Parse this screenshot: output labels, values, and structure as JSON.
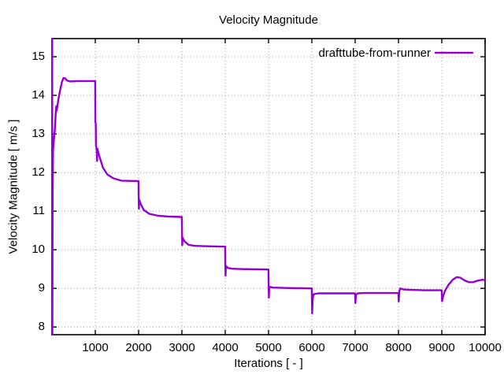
{
  "chart_data": {
    "type": "line",
    "title": "Velocity Magnitude",
    "xlabel": "Iterations [ - ]",
    "ylabel": "Velocity Magnitude [ m/s ]",
    "xlim": [
      0,
      10000
    ],
    "ylim": [
      7.8,
      15.47
    ],
    "xticks": [
      1000,
      2000,
      3000,
      4000,
      5000,
      6000,
      7000,
      8000,
      9000,
      10000
    ],
    "yticks": [
      8,
      9,
      10,
      11,
      12,
      13,
      14,
      15
    ],
    "grid": "dotted major ticks, both axes",
    "legend_position": "top-right-inside",
    "series": [
      {
        "name": "drafttube-from-runner",
        "color": "#9400D3",
        "points": [
          [
            2,
            7.8
          ],
          [
            6,
            15.47
          ],
          [
            10,
            7.8
          ],
          [
            14,
            11.5
          ],
          [
            25,
            12.6
          ],
          [
            45,
            12.85
          ],
          [
            65,
            13.1
          ],
          [
            80,
            13.4
          ],
          [
            92,
            13.65
          ],
          [
            100,
            13.72
          ],
          [
            107,
            13.6
          ],
          [
            118,
            13.66
          ],
          [
            145,
            13.88
          ],
          [
            185,
            14.12
          ],
          [
            230,
            14.35
          ],
          [
            265,
            14.45
          ],
          [
            305,
            14.44
          ],
          [
            350,
            14.38
          ],
          [
            420,
            14.36
          ],
          [
            600,
            14.37
          ],
          [
            800,
            14.37
          ],
          [
            998,
            14.37
          ],
          [
            1002,
            13.3
          ],
          [
            1010,
            13.28
          ],
          [
            1016,
            12.7
          ],
          [
            1030,
            12.62
          ],
          [
            1042,
            12.3
          ],
          [
            1048,
            12.62
          ],
          [
            1100,
            12.4
          ],
          [
            1180,
            12.12
          ],
          [
            1280,
            11.95
          ],
          [
            1420,
            11.85
          ],
          [
            1600,
            11.79
          ],
          [
            1998,
            11.78
          ],
          [
            2002,
            11.35
          ],
          [
            2007,
            11.06
          ],
          [
            2014,
            11.3
          ],
          [
            2050,
            11.18
          ],
          [
            2120,
            11.03
          ],
          [
            2250,
            10.93
          ],
          [
            2450,
            10.88
          ],
          [
            2700,
            10.86
          ],
          [
            2998,
            10.85
          ],
          [
            3002,
            10.45
          ],
          [
            3007,
            10.12
          ],
          [
            3014,
            10.32
          ],
          [
            3060,
            10.22
          ],
          [
            3150,
            10.13
          ],
          [
            3300,
            10.1
          ],
          [
            3600,
            10.09
          ],
          [
            3998,
            10.08
          ],
          [
            4002,
            9.65
          ],
          [
            4007,
            9.33
          ],
          [
            4016,
            9.58
          ],
          [
            4060,
            9.53
          ],
          [
            4150,
            9.51
          ],
          [
            4400,
            9.5
          ],
          [
            4998,
            9.49
          ],
          [
            5002,
            9.15
          ],
          [
            5007,
            8.76
          ],
          [
            5016,
            9.04
          ],
          [
            5100,
            9.02
          ],
          [
            5400,
            9.01
          ],
          [
            5998,
            9.0
          ],
          [
            6002,
            8.72
          ],
          [
            6007,
            8.35
          ],
          [
            6020,
            8.75
          ],
          [
            6045,
            8.85
          ],
          [
            6150,
            8.87
          ],
          [
            6500,
            8.87
          ],
          [
            6998,
            8.87
          ],
          [
            7002,
            8.74
          ],
          [
            7006,
            8.62
          ],
          [
            7018,
            8.83
          ],
          [
            7060,
            8.87
          ],
          [
            7200,
            8.88
          ],
          [
            7600,
            8.88
          ],
          [
            7998,
            8.88
          ],
          [
            8002,
            8.77
          ],
          [
            8006,
            8.66
          ],
          [
            8020,
            8.93
          ],
          [
            8045,
            9.0
          ],
          [
            8120,
            8.97
          ],
          [
            8300,
            8.96
          ],
          [
            8600,
            8.95
          ],
          [
            8998,
            8.95
          ],
          [
            9002,
            8.8
          ],
          [
            9007,
            8.67
          ],
          [
            9030,
            8.8
          ],
          [
            9080,
            8.95
          ],
          [
            9160,
            9.1
          ],
          [
            9250,
            9.22
          ],
          [
            9340,
            9.29
          ],
          [
            9420,
            9.28
          ],
          [
            9520,
            9.21
          ],
          [
            9620,
            9.16
          ],
          [
            9720,
            9.16
          ],
          [
            9830,
            9.2
          ],
          [
            9920,
            9.22
          ],
          [
            10000,
            9.22
          ]
        ]
      }
    ]
  }
}
